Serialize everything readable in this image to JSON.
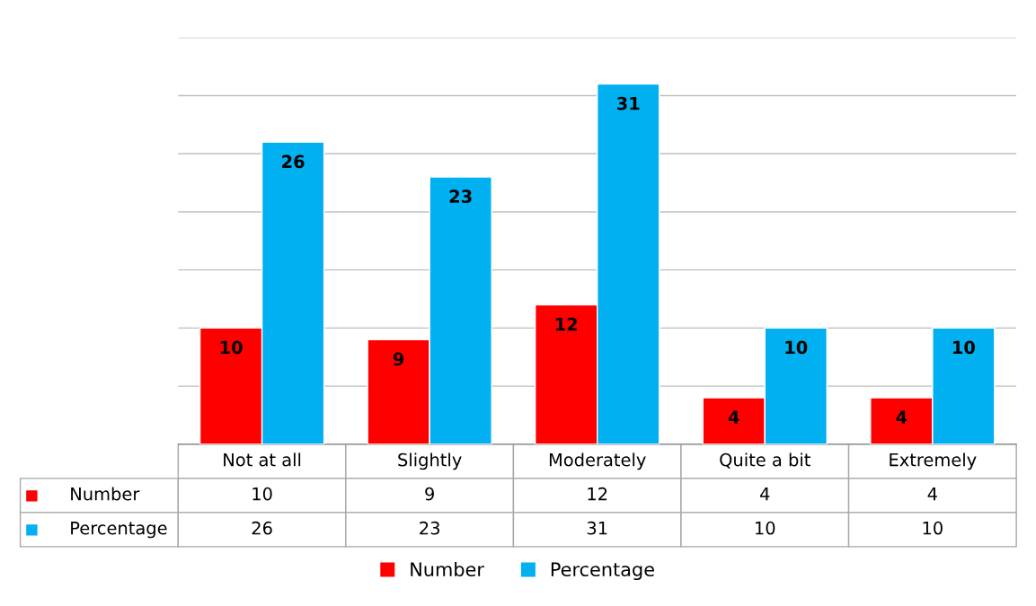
{
  "chart_data": {
    "type": "bar",
    "categories": [
      "Not at all",
      "Slightly",
      "Moderately",
      "Quite a bit",
      "Extremely"
    ],
    "series": [
      {
        "name": "Number",
        "color": "#ff0000",
        "values": [
          10,
          9,
          12,
          4,
          4
        ],
        "value_labels": [
          "10",
          "9",
          "12",
          "4",
          "4"
        ]
      },
      {
        "name": "Percentage",
        "color": "#00b0f0",
        "values": [
          26,
          23,
          31,
          10,
          10
        ],
        "value_labels": [
          "26",
          "23",
          "31",
          "10",
          "10"
        ]
      }
    ],
    "ylim": [
      0,
      35
    ],
    "yticks": [
      {
        "value": 0,
        "label": null
      },
      {
        "value": 5,
        "label": null
      },
      {
        "value": 10,
        "label": null
      },
      {
        "value": 15,
        "label": null
      },
      {
        "value": 20,
        "label": null
      },
      {
        "value": 25,
        "label": null
      },
      {
        "value": 30,
        "label": null
      },
      {
        "value": 35,
        "label": null
      }
    ],
    "annotations": [
      {
        "text": "10",
        "x": "Not at all",
        "y": 10
      },
      {
        "text": "9",
        "x": "Slightly",
        "y": 9
      },
      {
        "text": "12",
        "x": "Moderately",
        "y": 12
      },
      {
        "text": "4",
        "x": "Quite a bit",
        "y": 4
      },
      {
        "text": "4",
        "x": "Extremely",
        "y": 4
      },
      {
        "text": "26",
        "x": "Not at all",
        "y": 26
      },
      {
        "text": "23",
        "x": "Slightly",
        "y": 23
      },
      {
        "text": "31",
        "x": "Moderately",
        "y": 31
      },
      {
        "text": "10",
        "x": "Quite a bit",
        "y": 10
      },
      {
        "text": "10",
        "x": "Extremely",
        "y": 10
      }
    ],
    "grid": "y",
    "data_labels": true,
    "legend": "bottom"
  }
}
